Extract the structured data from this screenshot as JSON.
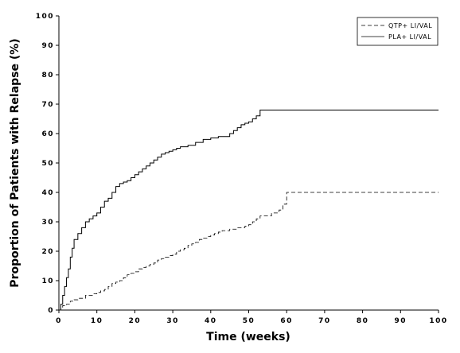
{
  "chart_data": {
    "type": "line",
    "step": true,
    "xlabel": "Time (weeks)",
    "ylabel": "Proportion of Patients with Relapse (%)",
    "xlim": [
      0,
      100
    ],
    "ylim": [
      0,
      100
    ],
    "xticks": [
      0,
      10,
      20,
      30,
      40,
      50,
      60,
      70,
      80,
      90,
      100
    ],
    "yticks": [
      0,
      10,
      20,
      30,
      40,
      50,
      60,
      70,
      80,
      90,
      100
    ],
    "grid": false,
    "legend_position": "top-right",
    "series": [
      {
        "name": "QTP+ LI/VAL",
        "style": "dashed",
        "color": "#000000",
        "x": [
          0,
          0.5,
          1,
          2,
          3,
          4,
          5,
          7,
          9,
          10,
          11,
          12,
          13,
          14,
          15,
          16,
          17,
          18,
          19,
          20,
          21,
          22,
          23,
          24,
          25,
          26,
          27,
          28,
          29,
          30,
          31,
          32,
          33,
          34,
          35,
          36,
          37,
          38,
          39,
          40,
          41,
          42,
          43,
          45,
          47,
          49,
          50,
          51,
          52,
          53,
          56,
          58,
          59,
          60,
          100
        ],
        "y": [
          0,
          1,
          1.5,
          2,
          3,
          3.5,
          4,
          5,
          5.5,
          6,
          6.5,
          7,
          8,
          9,
          9.5,
          10,
          11,
          12,
          12.5,
          13,
          14,
          14.5,
          15,
          15.5,
          16,
          17,
          17.5,
          18,
          18.5,
          19,
          20,
          20.5,
          21,
          22,
          22.5,
          23,
          24,
          24.5,
          25,
          25.5,
          26,
          26.5,
          27,
          27.5,
          28,
          28.5,
          29,
          30,
          31,
          32,
          33,
          34,
          36,
          40,
          40
        ]
      },
      {
        "name": "PLA+ LI/VAL",
        "style": "solid",
        "color": "#000000",
        "x": [
          0,
          0.5,
          1,
          1.5,
          2,
          2.5,
          3,
          3.5,
          4,
          5,
          6,
          7,
          8,
          9,
          10,
          11,
          12,
          13,
          14,
          15,
          16,
          17,
          18,
          19,
          20,
          21,
          22,
          23,
          24,
          25,
          26,
          27,
          28,
          29,
          30,
          31,
          32,
          34,
          36,
          38,
          40,
          42,
          45,
          46,
          47,
          48,
          49,
          50,
          51,
          52,
          53,
          100
        ],
        "y": [
          0,
          2,
          5,
          8,
          11,
          14,
          18,
          21,
          24,
          26,
          28,
          30,
          31,
          32,
          33,
          35,
          37,
          38,
          40,
          42,
          43,
          43.5,
          44,
          45,
          46,
          47,
          48,
          49,
          50,
          51,
          52,
          53,
          53.5,
          54,
          54.5,
          55,
          55.5,
          56,
          57,
          58,
          58.5,
          59,
          60,
          61,
          62,
          63,
          63.5,
          64,
          65,
          66,
          68,
          68
        ]
      }
    ]
  }
}
